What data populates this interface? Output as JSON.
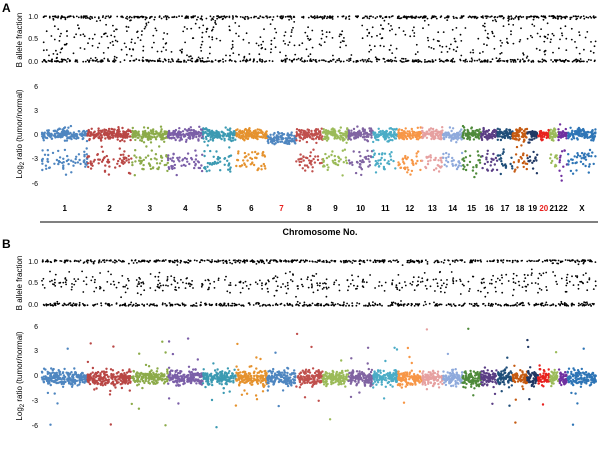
{
  "chart_data": [
    {
      "panel": "A",
      "type": "scatter",
      "track": "baf",
      "ylabel": "B allele fraction",
      "ylim": [
        0,
        1
      ],
      "yticks": [
        "0.0",
        "0.5",
        "1.0"
      ],
      "point_color": "#000000"
    },
    {
      "panel": "A",
      "type": "scatter",
      "track": "log2",
      "ylabel_main": "Log",
      "ylabel_sub": "2",
      "ylabel_rest": " ratio (tumor/normal)",
      "ylim": [
        -6,
        6
      ],
      "yticks": [
        "6",
        "3",
        "0",
        "-3",
        "-6"
      ],
      "xlabel": "Chromosome No.",
      "highlight_color": "#e8201e",
      "categories": [
        "1",
        "2",
        "3",
        "4",
        "5",
        "6",
        "7",
        "8",
        "9",
        "10",
        "11",
        "12",
        "13",
        "14",
        "15",
        "16",
        "17",
        "18",
        "19",
        "20",
        "21",
        "22",
        "X"
      ],
      "highlighted": [
        "7",
        "20"
      ],
      "series": [
        {
          "chr": "1",
          "color": "#4f86c0",
          "baseline": 0.3,
          "loss": -3.0
        },
        {
          "chr": "2",
          "color": "#b94745",
          "baseline": 0.3,
          "loss": -3.0
        },
        {
          "chr": "3",
          "color": "#8cab4a",
          "baseline": 0.3,
          "loss": -3.0
        },
        {
          "chr": "4",
          "color": "#7b5fa8",
          "baseline": 0.3,
          "loss": -3.0
        },
        {
          "chr": "5",
          "color": "#3c9ab2",
          "baseline": 0.3,
          "loss": -3.0
        },
        {
          "chr": "6",
          "color": "#e5922e",
          "baseline": 0.3,
          "loss": -3.0
        },
        {
          "chr": "7",
          "color": "#4f86c0",
          "baseline": -0.2,
          "loss": null
        },
        {
          "chr": "8",
          "color": "#c0504d",
          "baseline": 0.3,
          "loss": -3.0
        },
        {
          "chr": "9",
          "color": "#9bbb59",
          "baseline": 0.3,
          "loss": -3.0
        },
        {
          "chr": "10",
          "color": "#8064a2",
          "baseline": 0.3,
          "loss": -3.0
        },
        {
          "chr": "11",
          "color": "#4bacc6",
          "baseline": 0.3,
          "loss": -3.0
        },
        {
          "chr": "12",
          "color": "#f79646",
          "baseline": 0.3,
          "loss": -3.0
        },
        {
          "chr": "13",
          "color": "#e6a0a0",
          "baseline": 0.3,
          "loss": -3.0
        },
        {
          "chr": "14",
          "color": "#8faadc",
          "baseline": 0.3,
          "loss": -3.0
        },
        {
          "chr": "15",
          "color": "#4e8a3a",
          "baseline": 0.3,
          "loss": -3.0
        },
        {
          "chr": "16",
          "color": "#5a3e85",
          "baseline": 0.3,
          "loss": -3.0
        },
        {
          "chr": "17",
          "color": "#1f4e79",
          "baseline": 0.3,
          "loss": -3.0
        },
        {
          "chr": "18",
          "color": "#c55a11",
          "baseline": 0.3,
          "loss": -3.0
        },
        {
          "chr": "19",
          "color": "#203864",
          "baseline": 0.3,
          "loss": -3.0
        },
        {
          "chr": "20",
          "color": "#e8201e",
          "baseline": 0.3,
          "loss": null
        },
        {
          "chr": "21",
          "color": "#9bbb59",
          "baseline": 0.3,
          "loss": -3.0
        },
        {
          "chr": "22",
          "color": "#7030a0",
          "baseline": 0.3,
          "loss": -3.0
        },
        {
          "chr": "X",
          "color": "#2e75b6",
          "baseline": 0.3,
          "loss": -3.0
        }
      ]
    },
    {
      "panel": "B",
      "type": "scatter",
      "track": "baf",
      "ylabel": "B allele fraction",
      "ylim": [
        0,
        1
      ],
      "yticks": [
        "0.0",
        "0.5",
        "1.0"
      ],
      "point_color": "#000000"
    },
    {
      "panel": "B",
      "type": "scatter",
      "track": "log2",
      "ylabel_main": "Log",
      "ylabel_sub": "2",
      "ylabel_rest": " ratio (tumor/normal)",
      "ylim": [
        -6,
        6
      ],
      "yticks": [
        "6",
        "3",
        "0",
        "-3",
        "-6"
      ],
      "series_colors": [
        "#4f86c0",
        "#b94745",
        "#8cab4a",
        "#7b5fa8",
        "#3c9ab2",
        "#e5922e",
        "#4f86c0",
        "#c0504d",
        "#9bbb59",
        "#8064a2",
        "#4bacc6",
        "#f79646",
        "#e6a0a0",
        "#8faadc",
        "#4e8a3a",
        "#5a3e85",
        "#1f4e79",
        "#c55a11",
        "#203864",
        "#e8201e",
        "#9bbb59",
        "#7030a0",
        "#2e75b6"
      ],
      "baseline": 0.0
    }
  ],
  "panels": {
    "a_letter": "A",
    "b_letter": "B"
  }
}
